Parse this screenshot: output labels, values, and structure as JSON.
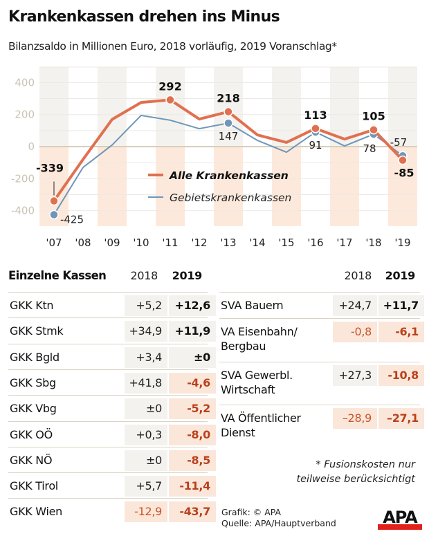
{
  "header": {
    "title": "Krankenkassen drehen ins Minus",
    "subtitle": "Bilanzsaldo in Millionen Euro, 2018 vorläufig, 2019 Voranschlag*"
  },
  "colors": {
    "alle": "#e07050",
    "gebiet": "#6f96b8",
    "negative_text": "#b8411b",
    "shade_positive": "#f4f2ee",
    "shade_negative": "#fde9dc",
    "logo_red": "#e3211b"
  },
  "chart_data": {
    "type": "line",
    "title": "Krankenkassen drehen ins Minus",
    "subtitle": "Bilanzsaldo in Millionen Euro, 2018 vorläufig, 2019 Voranschlag*",
    "xlabel": "",
    "ylabel": "",
    "ylim": [
      -500,
      500
    ],
    "yticks": [
      400,
      200,
      0,
      -200,
      -400
    ],
    "ytick_labels": [
      "400",
      "200",
      "0",
      "-200",
      "-400"
    ],
    "categories": [
      "'07",
      "'08",
      "'09",
      "'10",
      "'11",
      "'12",
      "'13",
      "'14",
      "'15",
      "'16",
      "'17",
      "'18",
      "'19"
    ],
    "grid": true,
    "legend_placement": "center",
    "series": [
      {
        "name": "Alle Krankenkassen",
        "values": [
          -339,
          -80,
          170,
          276,
          292,
          172,
          218,
          73,
          26,
          113,
          47,
          105,
          -85
        ],
        "labels": {
          "0": "-339",
          "4": "292",
          "6": "218",
          "9": "113",
          "11": "105",
          "12": "-85"
        }
      },
      {
        "name": "Gebietskrankenkassen",
        "values": [
          -425,
          -130,
          10,
          195,
          165,
          112,
          147,
          39,
          -35,
          91,
          4,
          78,
          -57
        ],
        "labels": {
          "0": "-425",
          "6": "147",
          "9": "91",
          "11": "78",
          "12": "-57"
        }
      }
    ]
  },
  "table_left": {
    "header": {
      "name": "Einzelne Kassen",
      "col2018": "2018",
      "col2019": "2019"
    },
    "rows": [
      {
        "name": "GKK Ktn",
        "v2018": "+5,2",
        "v2019": "+12,6",
        "neg2018": false,
        "neg2019": false
      },
      {
        "name": "GKK Stmk",
        "v2018": "+34,9",
        "v2019": "+11,9",
        "neg2018": false,
        "neg2019": false
      },
      {
        "name": "GKK Bgld",
        "v2018": "+3,4",
        "v2019": "±0",
        "neg2018": false,
        "neg2019": false
      },
      {
        "name": "GKK Sbg",
        "v2018": "+41,8",
        "v2019": "-4,6",
        "neg2018": false,
        "neg2019": true
      },
      {
        "name": "GKK Vbg",
        "v2018": "±0",
        "v2019": "-5,2",
        "neg2018": false,
        "neg2019": true
      },
      {
        "name": "GKK OÖ",
        "v2018": "+0,3",
        "v2019": "-8,0",
        "neg2018": false,
        "neg2019": true
      },
      {
        "name": "GKK NÖ",
        "v2018": "±0",
        "v2019": "-8,5",
        "neg2018": false,
        "neg2019": true
      },
      {
        "name": "GKK Tirol",
        "v2018": "+5,7",
        "v2019": "-11,4",
        "neg2018": false,
        "neg2019": true
      },
      {
        "name": "GKK Wien",
        "v2018": "-12,9",
        "v2019": "-43,7",
        "neg2018": true,
        "neg2019": true
      }
    ]
  },
  "table_right": {
    "header": {
      "col2018": "2018",
      "col2019": "2019"
    },
    "rows": [
      {
        "name_line1": "SVA Bauern",
        "name_line2": "",
        "v2018": "+24,7",
        "v2019": "+11,7",
        "neg2018": false,
        "neg2019": false
      },
      {
        "name_line1": "VA Eisenbahn/",
        "name_line2": "Bergbau",
        "v2018": "-0,8",
        "v2019": "-6,1",
        "neg2018": true,
        "neg2019": true
      },
      {
        "name_line1": "SVA Gewerbl.",
        "name_line2": "Wirtschaft",
        "v2018": "+27,3",
        "v2019": "-10,8",
        "neg2018": false,
        "neg2019": true
      },
      {
        "name_line1": "VA Öffentlicher",
        "name_line2": "Dienst",
        "v2018": "–28,9",
        "v2019": "–27,1",
        "neg2018": true,
        "neg2019": true
      }
    ]
  },
  "footnote": {
    "line1": "* Fusionskosten nur",
    "line2": "teilweise berücksichtigt"
  },
  "credits": {
    "grafik": "Grafik: © APA",
    "quelle": "Quelle: APA/Hauptverband"
  },
  "logo": {
    "text": "APA"
  }
}
